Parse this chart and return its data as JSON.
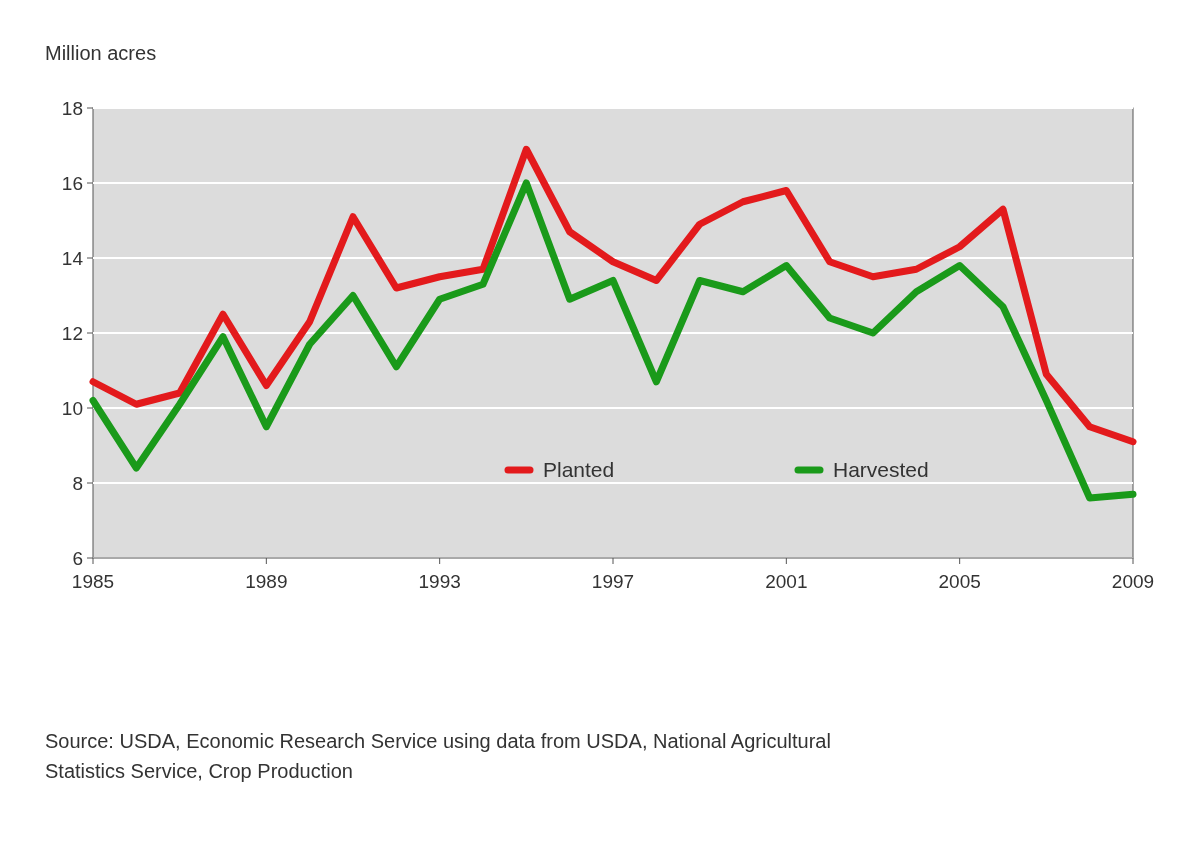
{
  "chart_data": {
    "type": "line",
    "ylabel": "Million acres",
    "x": [
      1985,
      1986,
      1987,
      1988,
      1989,
      1990,
      1991,
      1992,
      1993,
      1994,
      1995,
      1996,
      1997,
      1998,
      1999,
      2000,
      2001,
      2002,
      2003,
      2004,
      2005,
      2006,
      2007,
      2008,
      2009
    ],
    "series": [
      {
        "name": "Planted",
        "color": "#e31a1c",
        "values": [
          10.7,
          10.1,
          10.4,
          12.5,
          10.6,
          12.3,
          15.1,
          13.2,
          13.5,
          13.7,
          16.9,
          14.7,
          13.9,
          13.4,
          14.9,
          15.5,
          15.8,
          13.9,
          13.5,
          13.7,
          14.3,
          15.3,
          10.9,
          9.5,
          9.1
        ]
      },
      {
        "name": "Harvested",
        "color": "#1a9a1a",
        "values": [
          10.2,
          8.4,
          10.1,
          11.9,
          9.5,
          11.7,
          13.0,
          11.1,
          12.9,
          13.3,
          16.0,
          12.9,
          13.4,
          10.7,
          13.4,
          13.1,
          13.8,
          12.4,
          12.0,
          13.1,
          13.8,
          12.7,
          10.2,
          7.6,
          7.7
        ]
      }
    ],
    "xlim": [
      1985,
      2009
    ],
    "xticks": [
      1985,
      1989,
      1993,
      1997,
      2001,
      2005,
      2009
    ],
    "ylim": [
      6,
      18
    ],
    "yticks": [
      6,
      8,
      10,
      12,
      14,
      16,
      18
    ],
    "grid": "y",
    "legend": "bottom",
    "line_style": "solid",
    "marker": "none",
    "annotations": [
      "Source: USDA, Economic Research Service using data from USDA, National Agricultural Statistics Service, Crop Production"
    ]
  }
}
